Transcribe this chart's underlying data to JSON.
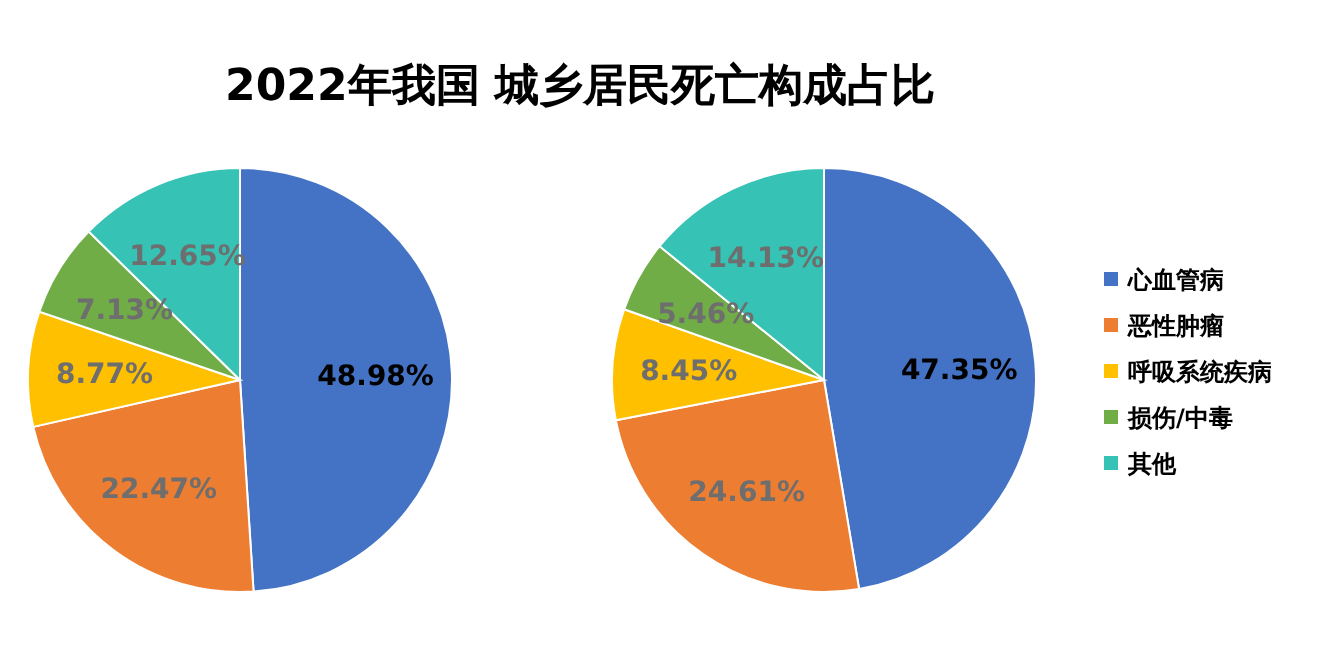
{
  "chart_data": [
    {
      "type": "pie",
      "title": "2022年我国 城乡居民死亡构成占比",
      "categories": [
        null,
        null,
        null,
        null,
        null
      ],
      "values": [
        48.98,
        22.47,
        8.77,
        7.13,
        12.65
      ],
      "value_labels": [
        "48.98%",
        "22.47%",
        "8.77%",
        "7.13%",
        "12.65%"
      ],
      "colors": [
        "#4472c4",
        "#ed7d31",
        "#ffc000",
        "#70ad47",
        "#36c2b4"
      ]
    },
    {
      "type": "pie",
      "categories": [
        "心血管病",
        "恶性肿瘤",
        "呼吸系统疾病",
        "损伤/中毒",
        "其他"
      ],
      "values": [
        47.35,
        24.61,
        8.45,
        5.46,
        14.13
      ],
      "value_labels": [
        "47.35%",
        "24.61%",
        "8.45%",
        "5.46%",
        "14.13%"
      ],
      "colors": [
        "#4472c4",
        "#ed7d31",
        "#ffc000",
        "#70ad47",
        "#36c2b4"
      ],
      "legend": "right"
    }
  ]
}
